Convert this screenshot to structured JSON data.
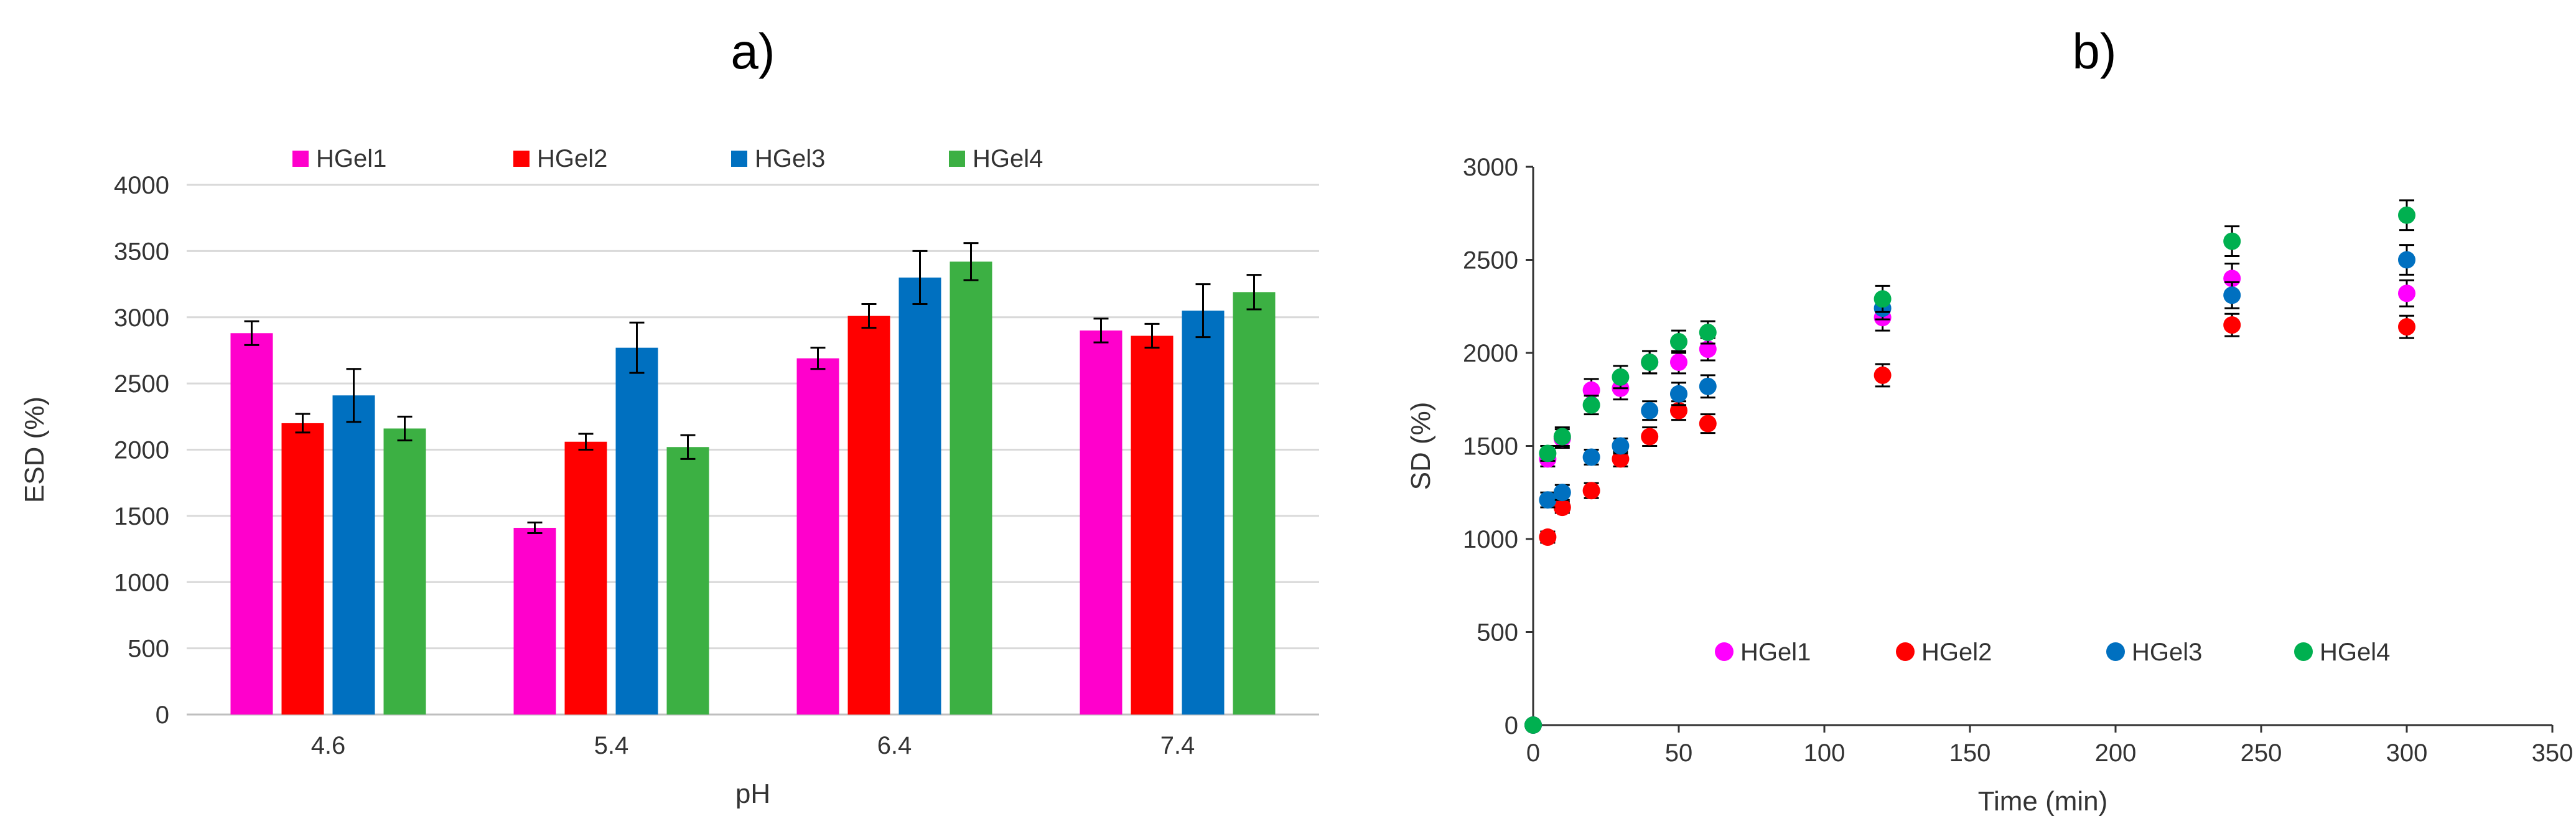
{
  "chart_data": [
    {
      "panel_label": "a)",
      "type": "bar",
      "xlabel": "pH",
      "ylabel": "ESD (%)",
      "ylim": [
        0,
        4000
      ],
      "yticks": [
        0,
        500,
        1000,
        1500,
        2000,
        2500,
        3000,
        3500,
        4000
      ],
      "grid": true,
      "legend": "top",
      "categories": [
        "4.6",
        "5.4",
        "6.4",
        "7.4"
      ],
      "series": [
        {
          "name": "HGel1",
          "color": "#ff00cc",
          "values": [
            2880,
            1410,
            2690,
            2900
          ],
          "errors": [
            90,
            40,
            80,
            90
          ]
        },
        {
          "name": "HGel2",
          "color": "#ff0000",
          "values": [
            2200,
            2060,
            3010,
            2860
          ],
          "errors": [
            70,
            60,
            90,
            90
          ]
        },
        {
          "name": "HGel3",
          "color": "#0070c0",
          "values": [
            2410,
            2770,
            3300,
            3050
          ],
          "errors": [
            200,
            190,
            200,
            200
          ]
        },
        {
          "name": "HGel4",
          "color": "#3cb043",
          "values": [
            2160,
            2020,
            3420,
            3190
          ],
          "errors": [
            90,
            90,
            140,
            130
          ]
        }
      ]
    },
    {
      "panel_label": "b)",
      "type": "scatter",
      "xlabel": "Time (min)",
      "ylabel": "SD (%)",
      "xlim": [
        0,
        350
      ],
      "ylim": [
        0,
        3000
      ],
      "xticks": [
        0,
        50,
        100,
        150,
        200,
        250,
        300,
        350
      ],
      "yticks": [
        0,
        500,
        1000,
        1500,
        2000,
        2500,
        3000
      ],
      "grid": false,
      "legend": "bottom",
      "x": [
        0,
        5,
        10,
        20,
        30,
        40,
        50,
        60,
        120,
        240,
        300
      ],
      "series": [
        {
          "name": "HGel1",
          "color": "#ff00ff",
          "values": [
            0,
            1430,
            1540,
            1800,
            1810,
            1950,
            1950,
            2020,
            2190,
            2400,
            2320
          ],
          "errors": [
            0,
            40,
            50,
            60,
            60,
            60,
            60,
            60,
            70,
            80,
            70
          ]
        },
        {
          "name": "HGel2",
          "color": "#ff0000",
          "values": [
            0,
            1010,
            1170,
            1260,
            1430,
            1550,
            1690,
            1620,
            1880,
            2150,
            2140
          ],
          "errors": [
            0,
            30,
            30,
            40,
            40,
            50,
            50,
            50,
            60,
            60,
            60
          ]
        },
        {
          "name": "HGel3",
          "color": "#0070c0",
          "values": [
            0,
            1210,
            1250,
            1440,
            1500,
            1690,
            1780,
            1820,
            2240,
            2310,
            2500
          ],
          "errors": [
            0,
            40,
            40,
            40,
            40,
            50,
            60,
            60,
            60,
            70,
            80
          ]
        },
        {
          "name": "HGel4",
          "color": "#00b050",
          "values": [
            0,
            1460,
            1550,
            1720,
            1870,
            1950,
            2060,
            2110,
            2290,
            2600,
            2740
          ],
          "errors": [
            0,
            40,
            50,
            50,
            60,
            60,
            60,
            60,
            70,
            80,
            80
          ]
        }
      ]
    }
  ]
}
